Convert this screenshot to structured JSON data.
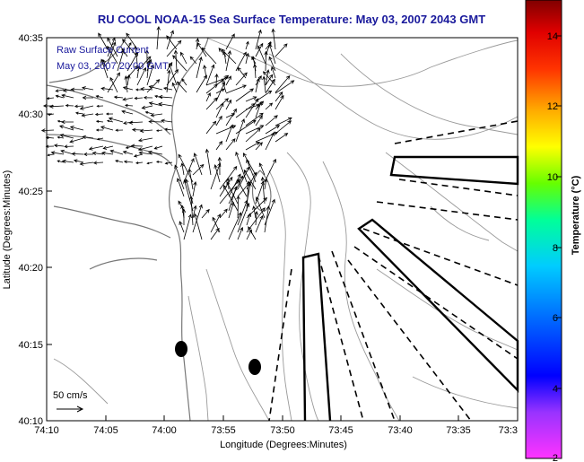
{
  "title": "RU COOL  NOAA-15  Sea Surface Temperature:  May 03, 2007 2043 GMT",
  "legend": {
    "line1": "Raw Surface Current",
    "line2": "May 03, 2007 20:00 GMT"
  },
  "scale": {
    "label": "50 cm/s"
  },
  "axes": {
    "xlabel": "Longitude (Degrees:Minutes)",
    "ylabel": "Latitude (Degrees:Minutes)",
    "xticks": [
      "74:10",
      "74:05",
      "74:00",
      "73:55",
      "73:50",
      "73:45",
      "73:40",
      "73:35",
      "73:3"
    ],
    "yticks": [
      "40:35",
      "40:30",
      "40:25",
      "40:20",
      "40:15",
      "40:10"
    ]
  },
  "colorbar": {
    "label": "Temperature (°C)",
    "ticks": [
      "14",
      "12",
      "10",
      "8",
      "6",
      "4",
      "2"
    ],
    "range": [
      2,
      15
    ]
  },
  "colors": {
    "title": "#1a1a9c",
    "frame": "#000000"
  }
}
